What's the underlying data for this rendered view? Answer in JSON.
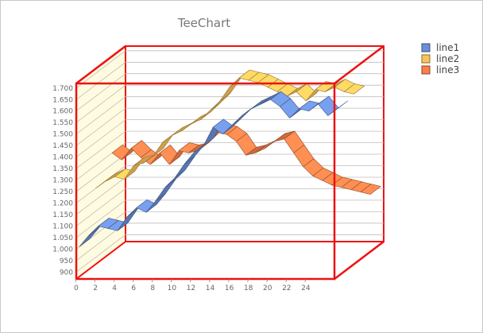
{
  "chart_data": {
    "type": "line",
    "style": "3d-ribbon",
    "title": "TeeChart",
    "xlabel": "",
    "ylabel": "",
    "x": [
      0,
      1,
      2,
      3,
      4,
      5,
      6,
      7,
      8,
      9,
      10,
      11,
      12,
      13,
      14,
      15,
      16,
      17,
      18,
      19,
      20,
      21,
      22,
      23,
      24,
      25,
      26,
      27
    ],
    "xlim": [
      0,
      27
    ],
    "ylim": [
      870,
      1720
    ],
    "x_ticks": [
      "0",
      "2",
      "4",
      "6",
      "8",
      "10",
      "12",
      "14",
      "16",
      "18",
      "20",
      "22",
      "24"
    ],
    "y_ticks": [
      "900",
      "950",
      "1.000",
      "1.050",
      "1.100",
      "1.150",
      "1.200",
      "1.250",
      "1.300",
      "1.350",
      "1.400",
      "1.450",
      "1.500",
      "1.550",
      "1.600",
      "1.650",
      "1.700"
    ],
    "y_tick_values": [
      900,
      950,
      1000,
      1050,
      1100,
      1150,
      1200,
      1250,
      1300,
      1350,
      1400,
      1450,
      1500,
      1550,
      1600,
      1650,
      1700
    ],
    "grid": true,
    "legend_position": "top-right",
    "series": [
      {
        "name": "line1",
        "color": "#6b8fd6",
        "depth_index": 0,
        "values": [
          1000,
          1050,
          1090,
          1080,
          1070,
          1130,
          1170,
          1150,
          1200,
          1260,
          1300,
          1360,
          1410,
          1440,
          1520,
          1490,
          1530,
          1570,
          1600,
          1620,
          1640,
          1610,
          1560,
          1600,
          1590,
          1620,
          1570,
          1600
        ]
      },
      {
        "name": "line2",
        "color": "#f9c35a",
        "depth_index": 1,
        "values": [
          1200,
          1230,
          1250,
          1240,
          1300,
          1310,
          1340,
          1400,
          1430,
          1450,
          1480,
          1500,
          1540,
          1580,
          1640,
          1680,
          1670,
          1660,
          1640,
          1620,
          1600,
          1620,
          1580,
          1630,
          1620,
          1640,
          1620,
          1610
        ]
      },
      {
        "name": "line3",
        "color": "#f9804a",
        "depth_index": 2,
        "values": [
          1300,
          1270,
          1320,
          1280,
          1250,
          1300,
          1250,
          1310,
          1300,
          1310,
          1350,
          1390,
          1380,
          1350,
          1290,
          1300,
          1320,
          1350,
          1360,
          1300,
          1240,
          1200,
          1180,
          1160,
          1150,
          1140,
          1130,
          1120
        ]
      }
    ]
  }
}
